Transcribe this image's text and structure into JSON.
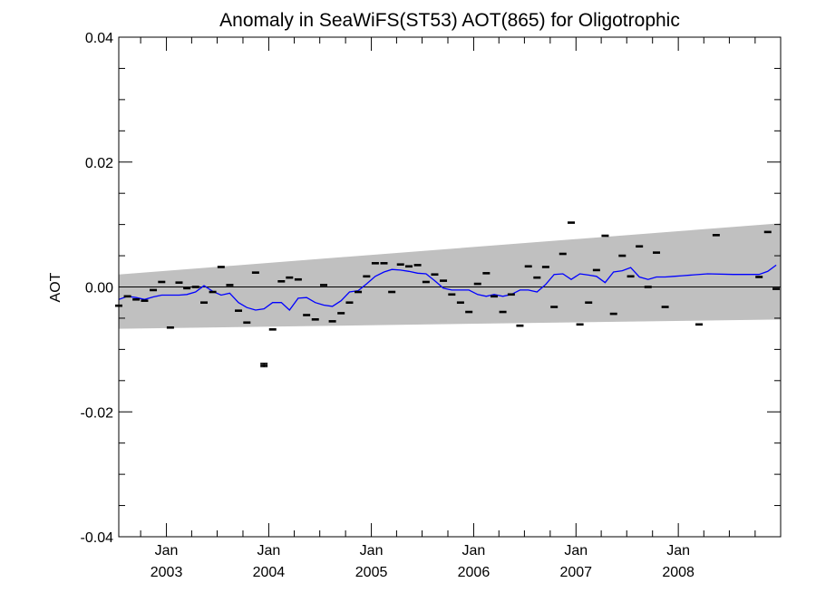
{
  "chart_data": {
    "type": "scatter",
    "title": "Anomaly in SeaWiFS(ST53) AOT(865) for Oligotrophic",
    "xlabel": "",
    "ylabel": "AOT",
    "xlim": [
      "2002-07-15",
      "2008-12-31"
    ],
    "ylim": [
      -0.04,
      0.04
    ],
    "y_ticks": [
      {
        "value": 0.04,
        "label": "0.04"
      },
      {
        "value": 0.02,
        "label": "0.02"
      },
      {
        "value": 0.0,
        "label": "0.00"
      },
      {
        "value": -0.02,
        "label": "-0.02"
      },
      {
        "value": -0.04,
        "label": "-0.04"
      }
    ],
    "x_ticks": [
      {
        "date": "2003-01-01",
        "month": "Jan",
        "year": "2003"
      },
      {
        "date": "2004-01-01",
        "month": "Jan",
        "year": "2004"
      },
      {
        "date": "2005-01-01",
        "month": "Jan",
        "year": "2005"
      },
      {
        "date": "2006-01-01",
        "month": "Jan",
        "year": "2006"
      },
      {
        "date": "2007-01-01",
        "month": "Jan",
        "year": "2007"
      },
      {
        "date": "2008-01-01",
        "month": "Jan",
        "year": "2008"
      }
    ],
    "grid": false,
    "zero_line": true,
    "band": {
      "x": [
        "2002-07-15",
        "2008-12-31"
      ],
      "upper": [
        0.002,
        0.0102
      ],
      "lower": [
        -0.0067,
        -0.0052
      ],
      "color": "#c0c0c0"
    },
    "points": {
      "color": "#000000",
      "x": [
        "2002-07-15",
        "2002-08-15",
        "2002-09-15",
        "2002-10-15",
        "2002-11-15",
        "2002-12-15",
        "2003-01-15",
        "2003-02-15",
        "2003-03-15",
        "2003-04-15",
        "2003-05-15",
        "2003-06-15",
        "2003-07-15",
        "2003-08-15",
        "2003-09-15",
        "2003-10-15",
        "2003-11-15",
        "2003-12-15",
        "2004-01-15",
        "2004-02-15",
        "2004-03-15",
        "2004-04-15",
        "2004-05-15",
        "2004-06-15",
        "2004-07-15",
        "2004-08-15",
        "2004-09-15",
        "2004-10-15",
        "2004-11-15",
        "2004-12-15",
        "2005-01-15",
        "2005-02-15",
        "2005-03-15",
        "2005-04-15",
        "2005-05-15",
        "2005-06-15",
        "2005-07-15",
        "2005-08-15",
        "2005-09-15",
        "2005-10-15",
        "2005-11-15",
        "2005-12-15",
        "2006-01-15",
        "2006-02-15",
        "2006-03-15",
        "2006-04-15",
        "2006-05-15",
        "2006-06-15",
        "2006-07-15",
        "2006-08-15",
        "2006-09-15",
        "2006-10-15",
        "2006-11-15",
        "2006-12-15",
        "2007-01-15",
        "2007-02-15",
        "2007-03-15",
        "2007-04-15",
        "2007-05-15",
        "2007-06-15",
        "2007-07-15",
        "2007-08-15",
        "2007-09-15",
        "2007-10-15",
        "2007-11-15",
        "2007-12-15",
        "2008-01-15",
        "2008-02-15",
        "2008-03-15",
        "2008-04-15",
        "2008-05-15",
        "2008-06-15",
        "2008-07-15",
        "2008-08-15",
        "2008-09-15",
        "2008-10-15",
        "2008-11-15",
        "2008-12-15"
      ],
      "y": [
        -0.003,
        -0.0015,
        -0.002,
        -0.0022,
        -0.0005,
        0.0008,
        -0.0065,
        0.0007,
        -0.0002,
        0.0,
        -0.0025,
        -0.0008,
        0.0032,
        0.0003,
        -0.0038,
        -0.0057,
        0.0023,
        -0.0125,
        -0.0068,
        0.0009,
        0.0015,
        0.0012,
        -0.0045,
        -0.0052,
        0.0003,
        -0.0055,
        -0.0042,
        -0.0025,
        -0.0008,
        0.0017,
        0.0038,
        0.0038,
        -0.0008,
        0.0036,
        0.0033,
        0.0035,
        0.0008,
        0.002,
        0.001,
        -0.0012,
        -0.0025,
        -0.004,
        0.0005,
        0.0022,
        -0.0015,
        -0.004,
        -0.0012,
        -0.0062,
        0.0033,
        0.0015,
        0.0032,
        -0.0032,
        0.0053,
        0.0103,
        -0.006,
        -0.0025,
        0.0027,
        0.0082,
        -0.0043,
        0.005,
        0.0017,
        0.0065,
        0.0,
        0.0055,
        -0.0032,
        null,
        null,
        null,
        -0.006,
        null,
        0.0083,
        null,
        null,
        null,
        null,
        0.0016,
        0.0088,
        -0.0003
      ],
      "error": [
        0,
        0,
        0,
        0,
        0,
        0,
        0,
        0,
        0,
        0,
        0,
        0,
        0,
        0,
        0,
        0,
        0,
        0.0006,
        0,
        0,
        0,
        0,
        0,
        0,
        0,
        0,
        0,
        0,
        0,
        0,
        0,
        0,
        0,
        0,
        0,
        0,
        0,
        0,
        0,
        0,
        0,
        0,
        0,
        0,
        0,
        0,
        0,
        0,
        0,
        0,
        0,
        0,
        0,
        0,
        0,
        0,
        0,
        0,
        0,
        0,
        0,
        0,
        0,
        0,
        0,
        0,
        0,
        0,
        0,
        0,
        0,
        0,
        0,
        0,
        0,
        0,
        0,
        0
      ]
    },
    "series": [
      {
        "color": "#0000ff",
        "x": [
          "2002-07-15",
          "2002-08-15",
          "2002-09-15",
          "2002-10-15",
          "2002-11-15",
          "2002-12-15",
          "2003-01-15",
          "2003-02-15",
          "2003-03-15",
          "2003-04-15",
          "2003-05-15",
          "2003-06-15",
          "2003-07-15",
          "2003-08-15",
          "2003-09-15",
          "2003-10-15",
          "2003-11-15",
          "2003-12-15",
          "2004-01-15",
          "2004-02-15",
          "2004-03-15",
          "2004-04-15",
          "2004-05-15",
          "2004-06-15",
          "2004-07-15",
          "2004-08-15",
          "2004-09-15",
          "2004-10-15",
          "2004-11-15",
          "2004-12-15",
          "2005-01-15",
          "2005-02-15",
          "2005-03-15",
          "2005-04-15",
          "2005-05-15",
          "2005-06-15",
          "2005-07-15",
          "2005-08-15",
          "2005-09-15",
          "2005-10-15",
          "2005-11-15",
          "2005-12-15",
          "2006-01-15",
          "2006-02-15",
          "2006-03-15",
          "2006-04-15",
          "2006-05-15",
          "2006-06-15",
          "2006-07-15",
          "2006-08-15",
          "2006-09-15",
          "2006-10-15",
          "2006-11-15",
          "2006-12-15",
          "2007-01-15",
          "2007-02-15",
          "2007-03-15",
          "2007-04-15",
          "2007-05-15",
          "2007-06-15",
          "2007-07-15",
          "2007-08-15",
          "2007-09-15",
          "2007-10-15",
          "2007-11-15",
          "2007-12-15",
          "2008-01-15",
          "2008-04-15",
          "2008-07-15",
          "2008-10-15",
          "2008-11-15",
          "2008-12-15"
        ],
        "values": [
          -0.002,
          -0.0015,
          -0.0017,
          -0.002,
          -0.0016,
          -0.0013,
          -0.0013,
          -0.0013,
          -0.0012,
          -0.0008,
          0.0002,
          -0.0007,
          -0.0013,
          -0.001,
          -0.0025,
          -0.0033,
          -0.0037,
          -0.0035,
          -0.0025,
          -0.0025,
          -0.0037,
          -0.0018,
          -0.0017,
          -0.0025,
          -0.0029,
          -0.0031,
          -0.0022,
          -0.0008,
          -0.0006,
          0.0005,
          0.0017,
          0.0024,
          0.0028,
          0.0027,
          0.0025,
          0.0022,
          0.0021,
          0.001,
          -0.0002,
          -0.0005,
          -0.0005,
          -0.0005,
          -0.0012,
          -0.0015,
          -0.0012,
          -0.0015,
          -0.0012,
          -0.0005,
          -0.0005,
          -0.0008,
          0.0004,
          0.002,
          0.0021,
          0.0012,
          0.0021,
          0.0019,
          0.0017,
          0.0007,
          0.0024,
          0.0026,
          0.0031,
          0.0016,
          0.0012,
          0.0016,
          0.0016,
          0.0017,
          0.0018,
          0.0021,
          0.002,
          0.002,
          0.0025,
          0.0035
        ]
      }
    ]
  }
}
